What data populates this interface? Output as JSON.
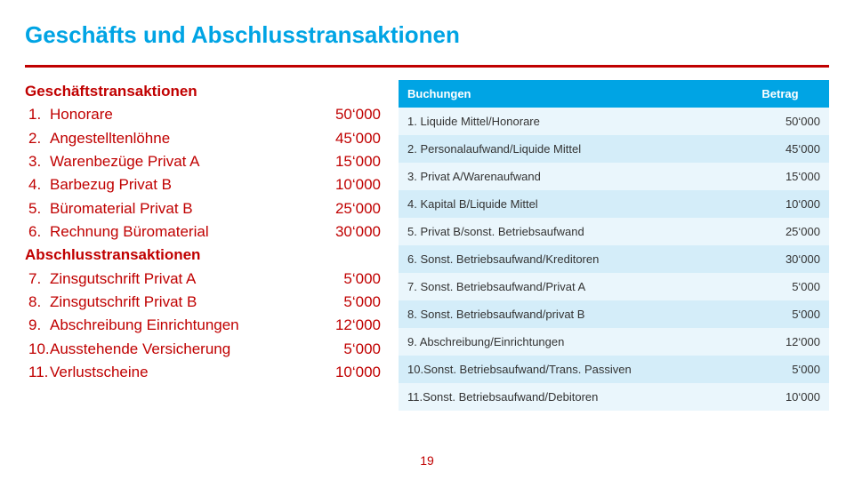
{
  "title": "Geschäfts und Abschlusstransaktionen",
  "left": {
    "section1_head": "Geschäftstransaktionen",
    "items1": [
      {
        "n": "1.",
        "label": "Honorare",
        "val": "50‘000"
      },
      {
        "n": "2.",
        "label": "Angestelltenlöhne",
        "val": "45‘000"
      },
      {
        "n": "3.",
        "label": "Warenbezüge Privat A",
        "val": "15‘000"
      },
      {
        "n": "4.",
        "label": "Barbezug Privat B",
        "val": "10‘000"
      },
      {
        "n": "5.",
        "label": "Büromaterial Privat B",
        "val": "25‘000"
      },
      {
        "n": "6.",
        "label": "Rechnung Büromaterial",
        "val": "30‘000"
      }
    ],
    "section2_head": "Abschlusstransaktionen",
    "items2": [
      {
        "n": "7.",
        "label": "Zinsgutschrift Privat A",
        "val": "5‘000"
      },
      {
        "n": "8.",
        "label": "Zinsgutschrift Privat B",
        "val": "5‘000"
      },
      {
        "n": "9.",
        "label": "Abschreibung Einrichtungen",
        "val": "12‘000"
      },
      {
        "n": "10.",
        "label": "Ausstehende Versicherung",
        "val": "5‘000"
      },
      {
        "n": "11.",
        "label": "Verlustscheine",
        "val": "10‘000"
      }
    ]
  },
  "table": {
    "head_col1": "Buchungen",
    "head_col2": "Betrag",
    "rows": [
      {
        "c1": "1. Liquide Mittel/Honorare",
        "c2": "50‘000"
      },
      {
        "c1": "2. Personalaufwand/Liquide Mittel",
        "c2": "45‘000"
      },
      {
        "c1": "3. Privat A/Warenaufwand",
        "c2": "15‘000"
      },
      {
        "c1": "4. Kapital B/Liquide Mittel",
        "c2": "10‘000"
      },
      {
        "c1": "5. Privat B/sonst. Betriebsaufwand",
        "c2": "25‘000"
      },
      {
        "c1": "6. Sonst. Betriebsaufwand/Kreditoren",
        "c2": "30‘000"
      },
      {
        "c1": "7. Sonst. Betriebsaufwand/Privat A",
        "c2": "5‘000"
      },
      {
        "c1": "8. Sonst. Betriebsaufwand/privat B",
        "c2": "5‘000"
      },
      {
        "c1": "9. Abschreibung/Einrichtungen",
        "c2": "12‘000"
      },
      {
        "c1": "10.Sonst. Betriebsaufwand/Trans. Passiven",
        "c2": "5‘000"
      },
      {
        "c1": "11.Sonst. Betriebsaufwand/Debitoren",
        "c2": "10‘000"
      }
    ]
  },
  "page_number": "19",
  "colors": {
    "accent_blue": "#00a4e4",
    "accent_red": "#c00000",
    "row_odd": "#eaf6fc",
    "row_even": "#d4edf9"
  }
}
